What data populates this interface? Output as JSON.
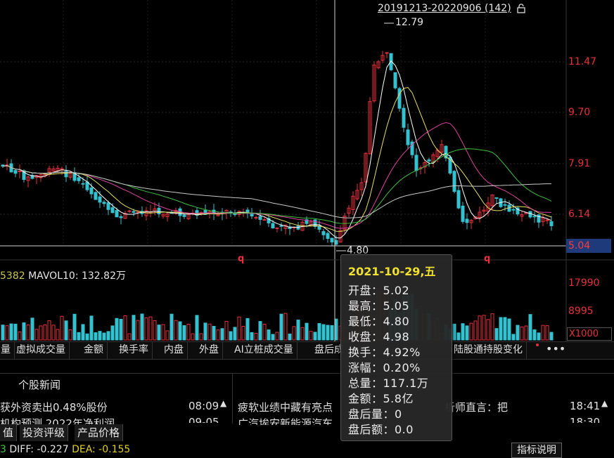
{
  "range_label": "20191213-20220906 (142)",
  "price_axis": [
    "11.47",
    "9.70",
    "7.91",
    "6.14"
  ],
  "current_price": "5.04",
  "high_marker": "12.79",
  "low_marker": "4.80",
  "markers": [
    "q",
    "q"
  ],
  "volume_legend": {
    "prefix": "5382",
    "label": "MAVOL10: 132.82万"
  },
  "volume_axis": [
    "17990",
    "8995"
  ],
  "volume_unit": "X1000",
  "tabs": [
    "量",
    "虚拟成交量",
    "金额",
    "换手率",
    "内盘",
    "外盘",
    "AI立桩成交量",
    "盘后成",
    "陆股通持股变化"
  ],
  "more_label": "•••",
  "news": {
    "title": "个股新闻",
    "left": [
      {
        "text": "获外资卖出0.48%股份",
        "time": "08:09"
      },
      {
        "text": "机构预测 2022年净利润",
        "time": "09-05"
      }
    ],
    "right": [
      {
        "text": "疲软业绩中藏有亮点",
        "mid": "析师直言：把",
        "time": "18:41"
      },
      {
        "text": "广汽埃安新能源汽车",
        "mid": "",
        "time": "18:30"
      }
    ]
  },
  "bottom_tabs": [
    "值",
    "投资评级",
    "产品价格"
  ],
  "macd": {
    "prefix": "3",
    "diff": "DIFF: -0.227",
    "dea": "DEA: -0.155"
  },
  "explain_label": "指标说明",
  "tooltip": {
    "date": "2021-10-29,五",
    "rows": [
      "开盘：5.02",
      "最高：5.05",
      "最低：4.80",
      "收盘：4.98",
      "换手：4.92%",
      "涨幅：0.20%",
      "总量：117.1万",
      "金额：5.8亿",
      "盘后量：0",
      "盘后额：0.0"
    ]
  },
  "colors": {
    "up": "#e8303a",
    "down": "#35c2d0",
    "ma5": "#ffffff",
    "ma10": "#e8e060",
    "ma20": "#e040a0",
    "ma30": "#40c040",
    "ma60": "#c8c8c8"
  }
}
